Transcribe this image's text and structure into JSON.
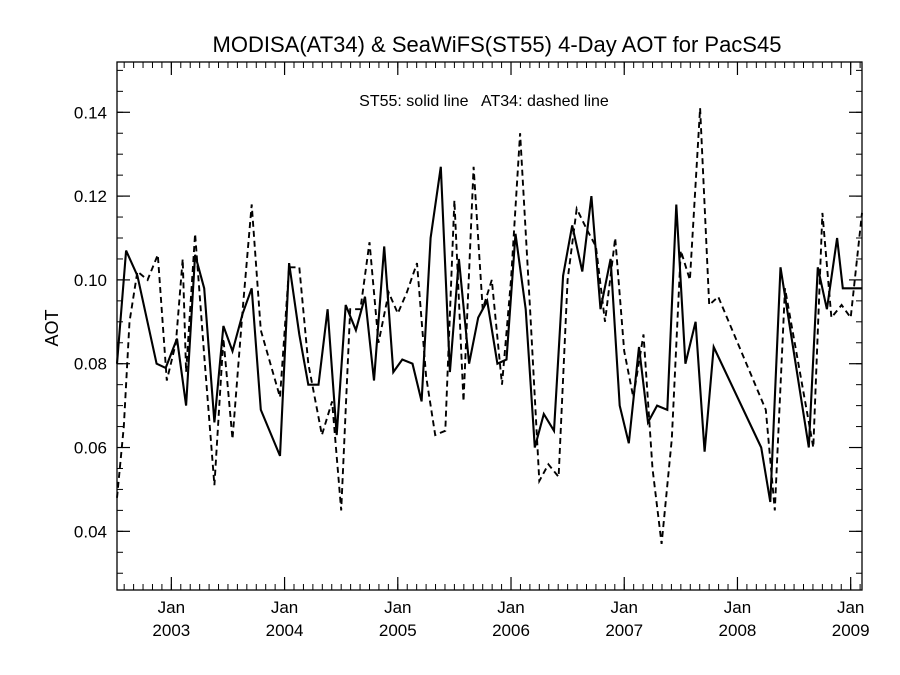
{
  "chart_data": {
    "type": "line",
    "title": "MODISA(AT34) & SeaWiFS(ST55) 4-Day AOT for PacS45",
    "ylabel": "AOT",
    "xlabel": "",
    "annotation": "ST55: solid line   AT34: dashed line",
    "xlim": [
      2002.52,
      2009.1
    ],
    "ylim": [
      0.026,
      0.152
    ],
    "y_major_ticks": [
      0.04,
      0.06,
      0.08,
      0.1,
      0.12,
      0.14
    ],
    "y_tick_labels": [
      "0.04",
      "0.06",
      "0.08",
      "0.10",
      "0.12",
      "0.14"
    ],
    "y_minor_step": 0.005,
    "x_tick_positions": [
      2003,
      2004,
      2005,
      2006,
      2007,
      2008,
      2009
    ],
    "x_tick_labels_top": [
      "Jan",
      "Jan",
      "Jan",
      "Jan",
      "Jan",
      "Jan",
      "Jan"
    ],
    "x_tick_labels_bottom": [
      "2003",
      "2004",
      "2005",
      "2006",
      "2007",
      "2008",
      "2009"
    ],
    "series": [
      {
        "style": "solid",
        "points": [
          [
            2002.52,
            0.08
          ],
          [
            2002.6,
            0.107
          ],
          [
            2002.7,
            0.101
          ],
          [
            2002.87,
            0.08
          ],
          [
            2002.95,
            0.079
          ],
          [
            2003.05,
            0.086
          ],
          [
            2003.13,
            0.07
          ],
          [
            2003.21,
            0.106
          ],
          [
            2003.29,
            0.098
          ],
          [
            2003.38,
            0.066
          ],
          [
            2003.46,
            0.089
          ],
          [
            2003.54,
            0.083
          ],
          [
            2003.63,
            0.092
          ],
          [
            2003.71,
            0.098
          ],
          [
            2003.79,
            0.069
          ],
          [
            2003.96,
            0.058
          ],
          [
            2004.04,
            0.104
          ],
          [
            2004.13,
            0.087
          ],
          [
            2004.21,
            0.075
          ],
          [
            2004.3,
            0.075
          ],
          [
            2004.38,
            0.093
          ],
          [
            2004.46,
            0.063
          ],
          [
            2004.54,
            0.094
          ],
          [
            2004.63,
            0.088
          ],
          [
            2004.71,
            0.096
          ],
          [
            2004.79,
            0.076
          ],
          [
            2004.88,
            0.108
          ],
          [
            2004.96,
            0.078
          ],
          [
            2005.04,
            0.081
          ],
          [
            2005.13,
            0.08
          ],
          [
            2005.21,
            0.071
          ],
          [
            2005.29,
            0.11
          ],
          [
            2005.38,
            0.127
          ],
          [
            2005.46,
            0.078
          ],
          [
            2005.54,
            0.105
          ],
          [
            2005.63,
            0.08
          ],
          [
            2005.71,
            0.091
          ],
          [
            2005.79,
            0.095
          ],
          [
            2005.88,
            0.08
          ],
          [
            2005.96,
            0.081
          ],
          [
            2006.04,
            0.111
          ],
          [
            2006.13,
            0.093
          ],
          [
            2006.21,
            0.06
          ],
          [
            2006.29,
            0.068
          ],
          [
            2006.38,
            0.064
          ],
          [
            2006.46,
            0.101
          ],
          [
            2006.54,
            0.113
          ],
          [
            2006.63,
            0.102
          ],
          [
            2006.71,
            0.12
          ],
          [
            2006.79,
            0.093
          ],
          [
            2006.88,
            0.105
          ],
          [
            2006.96,
            0.07
          ],
          [
            2007.04,
            0.061
          ],
          [
            2007.13,
            0.084
          ],
          [
            2007.21,
            0.066
          ],
          [
            2007.29,
            0.07
          ],
          [
            2007.38,
            0.069
          ],
          [
            2007.46,
            0.118
          ],
          [
            2007.54,
            0.08
          ],
          [
            2007.63,
            0.09
          ],
          [
            2007.71,
            0.059
          ],
          [
            2007.79,
            0.084
          ],
          [
            2008.21,
            0.06
          ],
          [
            2008.29,
            0.047
          ],
          [
            2008.38,
            0.103
          ],
          [
            2008.63,
            0.06
          ],
          [
            2008.71,
            0.103
          ],
          [
            2008.79,
            0.093
          ],
          [
            2008.88,
            0.11
          ],
          [
            2008.93,
            0.098
          ],
          [
            2009.1,
            0.098
          ]
        ]
      },
      {
        "style": "dashed",
        "points": [
          [
            2002.52,
            0.048
          ],
          [
            2002.58,
            0.065
          ],
          [
            2002.63,
            0.09
          ],
          [
            2002.7,
            0.102
          ],
          [
            2002.79,
            0.1
          ],
          [
            2002.88,
            0.106
          ],
          [
            2002.96,
            0.076
          ],
          [
            2003.04,
            0.085
          ],
          [
            2003.1,
            0.105
          ],
          [
            2003.13,
            0.078
          ],
          [
            2003.21,
            0.111
          ],
          [
            2003.29,
            0.082
          ],
          [
            2003.38,
            0.051
          ],
          [
            2003.46,
            0.086
          ],
          [
            2003.54,
            0.062
          ],
          [
            2003.63,
            0.093
          ],
          [
            2003.71,
            0.118
          ],
          [
            2003.79,
            0.088
          ],
          [
            2003.96,
            0.072
          ],
          [
            2004.04,
            0.103
          ],
          [
            2004.13,
            0.103
          ],
          [
            2004.21,
            0.08
          ],
          [
            2004.33,
            0.063
          ],
          [
            2004.42,
            0.071
          ],
          [
            2004.5,
            0.045
          ],
          [
            2004.58,
            0.093
          ],
          [
            2004.67,
            0.093
          ],
          [
            2004.75,
            0.109
          ],
          [
            2004.83,
            0.085
          ],
          [
            2004.92,
            0.097
          ],
          [
            2005.0,
            0.092
          ],
          [
            2005.08,
            0.097
          ],
          [
            2005.17,
            0.104
          ],
          [
            2005.25,
            0.077
          ],
          [
            2005.33,
            0.063
          ],
          [
            2005.42,
            0.064
          ],
          [
            2005.5,
            0.119
          ],
          [
            2005.58,
            0.071
          ],
          [
            2005.67,
            0.127
          ],
          [
            2005.75,
            0.093
          ],
          [
            2005.83,
            0.1
          ],
          [
            2005.92,
            0.075
          ],
          [
            2006.0,
            0.1
          ],
          [
            2006.08,
            0.135
          ],
          [
            2006.17,
            0.092
          ],
          [
            2006.25,
            0.052
          ],
          [
            2006.33,
            0.056
          ],
          [
            2006.42,
            0.053
          ],
          [
            2006.5,
            0.1
          ],
          [
            2006.58,
            0.117
          ],
          [
            2006.67,
            0.112
          ],
          [
            2006.75,
            0.108
          ],
          [
            2006.83,
            0.09
          ],
          [
            2006.92,
            0.11
          ],
          [
            2007.0,
            0.083
          ],
          [
            2007.08,
            0.072
          ],
          [
            2007.17,
            0.087
          ],
          [
            2007.25,
            0.055
          ],
          [
            2007.33,
            0.037
          ],
          [
            2007.42,
            0.062
          ],
          [
            2007.5,
            0.107
          ],
          [
            2007.58,
            0.1
          ],
          [
            2007.67,
            0.141
          ],
          [
            2007.75,
            0.094
          ],
          [
            2007.83,
            0.096
          ],
          [
            2008.25,
            0.069
          ],
          [
            2008.33,
            0.045
          ],
          [
            2008.42,
            0.098
          ],
          [
            2008.67,
            0.06
          ],
          [
            2008.75,
            0.116
          ],
          [
            2008.83,
            0.091
          ],
          [
            2008.92,
            0.094
          ],
          [
            2009.0,
            0.091
          ],
          [
            2009.1,
            0.116
          ]
        ]
      }
    ]
  }
}
